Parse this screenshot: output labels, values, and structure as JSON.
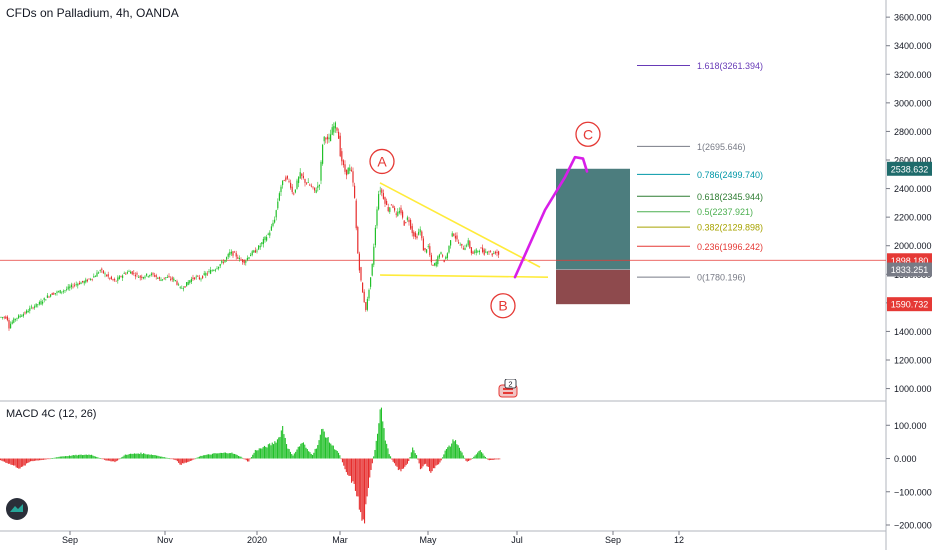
{
  "header": {
    "title": "CFDs on Palladium, 4h, OANDA",
    "macd_title": "MACD 4C (12, 26)",
    "event_count": "2"
  },
  "colors": {
    "up": "#22c02a",
    "down": "#e62d2d",
    "yellow": "#ffeb3b",
    "magenta": "#d81ee8",
    "teal_zone": "#1f5d5e",
    "red_zone": "#7a2a2e",
    "price_line": "#e53935"
  },
  "chart_data": [
    {
      "type": "candlestick",
      "title": "CFDs on Palladium, 4h, OANDA",
      "x_ticks": [
        "Sep",
        "Nov",
        "2020",
        "Mar",
        "May",
        "Jul",
        "Sep",
        "12"
      ],
      "x_tick_index": [
        0,
        2,
        4,
        5,
        6,
        7,
        9,
        10
      ],
      "y_ticks": [
        1000,
        1200,
        1400,
        1600,
        1800,
        2000,
        2200,
        2400,
        2600,
        2800,
        3000,
        3200,
        3400,
        3600
      ],
      "y_tick_labels": [
        "1000.000",
        "1200.000",
        "1400.000",
        "1600.000",
        "1800.000",
        "2000.000",
        "2200.000",
        "2400.000",
        "2600.000",
        "2800.000",
        "3000.000",
        "3200.000",
        "3400.000",
        "3600.000"
      ],
      "ylim": [
        920,
        3720
      ],
      "price_path": [
        [
          7.2,
          1500
        ],
        [
          7.8,
          1460
        ],
        [
          8.5,
          1420
        ],
        [
          10,
          1450
        ],
        [
          15,
          1490
        ],
        [
          20,
          1510
        ],
        [
          25,
          1530
        ],
        [
          30,
          1560
        ],
        [
          35,
          1580
        ],
        [
          40,
          1600
        ],
        [
          45,
          1630
        ],
        [
          50,
          1660
        ],
        [
          55,
          1670
        ],
        [
          60,
          1680
        ],
        [
          65,
          1690
        ],
        [
          70,
          1710
        ],
        [
          75,
          1730
        ],
        [
          80,
          1740
        ],
        [
          85,
          1750
        ],
        [
          90,
          1770
        ],
        [
          95,
          1790
        ],
        [
          100,
          1830
        ],
        [
          105,
          1800
        ],
        [
          110,
          1770
        ],
        [
          115,
          1750
        ],
        [
          120,
          1780
        ],
        [
          125,
          1810
        ],
        [
          130,
          1820
        ],
        [
          135,
          1800
        ],
        [
          140,
          1780
        ],
        [
          145,
          1790
        ],
        [
          150,
          1800
        ],
        [
          155,
          1790
        ],
        [
          160,
          1760
        ],
        [
          165,
          1780
        ],
        [
          170,
          1770
        ],
        [
          175,
          1760
        ],
        [
          180,
          1700
        ],
        [
          185,
          1720
        ],
        [
          190,
          1760
        ],
        [
          195,
          1780
        ],
        [
          200,
          1770
        ],
        [
          205,
          1800
        ],
        [
          210,
          1820
        ],
        [
          215,
          1840
        ],
        [
          220,
          1870
        ],
        [
          225,
          1900
        ],
        [
          230,
          1950
        ],
        [
          235,
          1940
        ],
        [
          240,
          1900
        ],
        [
          245,
          1890
        ],
        [
          250,
          1940
        ],
        [
          255,
          1960
        ],
        [
          260,
          2000
        ],
        [
          265,
          2050
        ],
        [
          270,
          2100
        ],
        [
          275,
          2200
        ],
        [
          280,
          2400
        ],
        [
          285,
          2480
        ],
        [
          290,
          2440
        ],
        [
          293,
          2350
        ],
        [
          296,
          2420
        ],
        [
          300,
          2500
        ],
        [
          305,
          2450
        ],
        [
          310,
          2420
        ],
        [
          315,
          2380
        ],
        [
          320,
          2450
        ],
        [
          322,
          2700
        ],
        [
          325,
          2780
        ],
        [
          328,
          2720
        ],
        [
          332,
          2810
        ],
        [
          335,
          2850
        ],
        [
          338,
          2800
        ],
        [
          340,
          2650
        ],
        [
          343,
          2560
        ],
        [
          346,
          2500
        ],
        [
          349,
          2550
        ],
        [
          352,
          2500
        ],
        [
          355,
          2300
        ],
        [
          357,
          2000
        ],
        [
          360,
          1800
        ],
        [
          363,
          1650
        ],
        [
          366,
          1550
        ],
        [
          369,
          1700
        ],
        [
          372,
          1850
        ],
        [
          375,
          2100
        ],
        [
          378,
          2350
        ],
        [
          380,
          2400
        ],
        [
          384,
          2330
        ],
        [
          388,
          2250
        ],
        [
          392,
          2300
        ],
        [
          396,
          2200
        ],
        [
          400,
          2260
        ],
        [
          404,
          2150
        ],
        [
          408,
          2200
        ],
        [
          412,
          2100
        ],
        [
          416,
          2050
        ],
        [
          420,
          2120
        ],
        [
          424,
          1950
        ],
        [
          428,
          2000
        ],
        [
          432,
          1850
        ],
        [
          436,
          1880
        ],
        [
          440,
          1960
        ],
        [
          444,
          1890
        ],
        [
          448,
          1960
        ],
        [
          452,
          2100
        ],
        [
          456,
          2050
        ],
        [
          460,
          2000
        ],
        [
          464,
          1980
        ],
        [
          468,
          2030
        ],
        [
          472,
          1940
        ],
        [
          476,
          1960
        ],
        [
          480,
          1980
        ],
        [
          484,
          1950
        ],
        [
          488,
          1970
        ],
        [
          492,
          1940
        ],
        [
          496,
          1960
        ],
        [
          500,
          1930
        ]
      ],
      "series": [
        {
          "name": "0(1780.196)",
          "value": 1780.196,
          "color": "#787b86"
        },
        {
          "name": "0.236(1996.242)",
          "value": 1996.242,
          "color": "#e53935"
        },
        {
          "name": "0.382(2129.898)",
          "value": 2129.898,
          "color": "#a7a300"
        },
        {
          "name": "0.5(2237.921)",
          "value": 2237.921,
          "color": "#4caf50"
        },
        {
          "name": "0.618(2345.944)",
          "value": 2345.944,
          "color": "#2e7d32"
        },
        {
          "name": "0.786(2499.740)",
          "value": 2499.74,
          "color": "#0097a7"
        },
        {
          "name": "1(2695.646)",
          "value": 2695.646,
          "color": "#787b86"
        },
        {
          "name": "1.618(3261.394)",
          "value": 3261.394,
          "color": "#673ab7"
        }
      ],
      "price_labels": [
        {
          "text": "2538.632",
          "value": 2538.632,
          "bg": "#1e6b6b"
        },
        {
          "text": "1898.180",
          "value": 1898.18,
          "bg": "#e53935"
        },
        {
          "text": "1833.251",
          "value": 1833.251,
          "bg": "#787b86"
        },
        {
          "text": "1590.732",
          "value": 1590.732,
          "bg": "#e53935"
        }
      ],
      "current_price": 1898.18,
      "projection": {
        "entry": 1833.251,
        "target": 2538.632,
        "stop": 1590.732
      },
      "annotations": [
        "A",
        "B",
        "C"
      ],
      "triangle": {
        "upper_from": [
          380,
          2440
        ],
        "upper_to": [
          540,
          1850
        ],
        "lower_from": [
          380,
          1795
        ],
        "lower_to": [
          548,
          1780
        ]
      },
      "path_c": [
        [
          515,
          1780
        ],
        [
          545,
          2250
        ],
        [
          565,
          2480
        ],
        [
          575,
          2620
        ],
        [
          583,
          2610
        ],
        [
          587,
          2520
        ]
      ]
    },
    {
      "type": "bar",
      "title": "MACD 4C (12, 26)",
      "y_ticks": [
        100,
        0,
        -100,
        -200
      ],
      "y_tick_labels": [
        "100.000",
        "0.000",
        "−100.000",
        "−200.000"
      ],
      "ylim": [
        -215,
        170
      ],
      "histogram_path": [
        [
          0,
          -5
        ],
        [
          20,
          -30
        ],
        [
          30,
          -8
        ],
        [
          45,
          -3
        ],
        [
          60,
          6
        ],
        [
          75,
          10
        ],
        [
          90,
          12
        ],
        [
          105,
          -5
        ],
        [
          115,
          -10
        ],
        [
          125,
          12
        ],
        [
          140,
          16
        ],
        [
          155,
          10
        ],
        [
          165,
          3
        ],
        [
          175,
          -4
        ],
        [
          180,
          -18
        ],
        [
          190,
          -8
        ],
        [
          200,
          8
        ],
        [
          215,
          15
        ],
        [
          230,
          18
        ],
        [
          240,
          6
        ],
        [
          248,
          -10
        ],
        [
          255,
          25
        ],
        [
          265,
          35
        ],
        [
          272,
          45
        ],
        [
          278,
          60
        ],
        [
          282,
          95
        ],
        [
          287,
          35
        ],
        [
          292,
          8
        ],
        [
          297,
          30
        ],
        [
          302,
          50
        ],
        [
          307,
          25
        ],
        [
          312,
          12
        ],
        [
          317,
          40
        ],
        [
          322,
          90
        ],
        [
          327,
          60
        ],
        [
          332,
          38
        ],
        [
          337,
          22
        ],
        [
          340,
          5
        ],
        [
          345,
          -40
        ],
        [
          350,
          -60
        ],
        [
          356,
          -100
        ],
        [
          360,
          -170
        ],
        [
          363,
          -200
        ],
        [
          367,
          -120
        ],
        [
          370,
          -40
        ],
        [
          374,
          20
        ],
        [
          377,
          80
        ],
        [
          380,
          170
        ],
        [
          384,
          70
        ],
        [
          388,
          20
        ],
        [
          392,
          -8
        ],
        [
          396,
          -25
        ],
        [
          400,
          -40
        ],
        [
          404,
          -25
        ],
        [
          408,
          -10
        ],
        [
          412,
          30
        ],
        [
          416,
          10
        ],
        [
          420,
          -30
        ],
        [
          425,
          -15
        ],
        [
          430,
          -40
        ],
        [
          435,
          -25
        ],
        [
          440,
          -10
        ],
        [
          445,
          25
        ],
        [
          450,
          40
        ],
        [
          454,
          60
        ],
        [
          458,
          35
        ],
        [
          462,
          15
        ],
        [
          466,
          -10
        ],
        [
          470,
          -5
        ],
        [
          475,
          10
        ],
        [
          480,
          25
        ],
        [
          484,
          8
        ],
        [
          488,
          -5
        ],
        [
          495,
          -3
        ],
        [
          500,
          -2
        ]
      ]
    }
  ]
}
